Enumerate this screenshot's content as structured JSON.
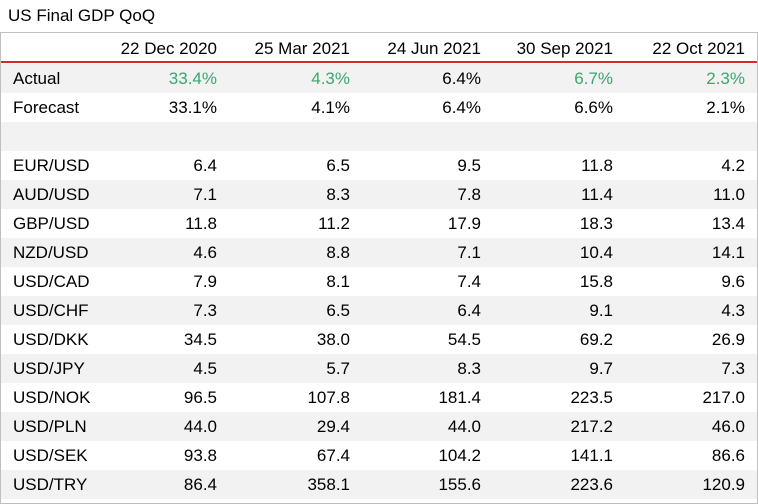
{
  "title": "US Final GDP QoQ",
  "columns": [
    "22 Dec 2020",
    "25 Mar 2021",
    "24 Jun 2021",
    "30 Sep 2021",
    "22 Oct 2021"
  ],
  "accent_color": "#d9272e",
  "positive_color": "#3aa76d",
  "rows": [
    {
      "label": "Actual",
      "values": [
        "33.4%",
        "4.3%",
        "6.4%",
        "6.7%",
        "2.3%"
      ]
    },
    {
      "label": "Forecast",
      "values": [
        "33.1%",
        "4.1%",
        "6.4%",
        "6.6%",
        "2.1%"
      ]
    },
    {
      "label": "",
      "values": [
        "",
        "",
        "",
        "",
        ""
      ]
    },
    {
      "label": "EUR/USD",
      "values": [
        "6.4",
        "6.5",
        "9.5",
        "11.8",
        "4.2"
      ]
    },
    {
      "label": "AUD/USD",
      "values": [
        "7.1",
        "8.3",
        "7.8",
        "11.4",
        "11.0"
      ]
    },
    {
      "label": "GBP/USD",
      "values": [
        "11.8",
        "11.2",
        "17.9",
        "18.3",
        "13.4"
      ]
    },
    {
      "label": "NZD/USD",
      "values": [
        "4.6",
        "8.8",
        "7.1",
        "10.4",
        "14.1"
      ]
    },
    {
      "label": "USD/CAD",
      "values": [
        "7.9",
        "8.1",
        "7.4",
        "15.8",
        "9.6"
      ]
    },
    {
      "label": "USD/CHF",
      "values": [
        "7.3",
        "6.5",
        "6.4",
        "9.1",
        "4.3"
      ]
    },
    {
      "label": "USD/DKK",
      "values": [
        "34.5",
        "38.0",
        "54.5",
        "69.2",
        "26.9"
      ]
    },
    {
      "label": "USD/JPY",
      "values": [
        "4.5",
        "5.7",
        "8.3",
        "9.7",
        "7.3"
      ]
    },
    {
      "label": "USD/NOK",
      "values": [
        "96.5",
        "107.8",
        "181.4",
        "223.5",
        "217.0"
      ]
    },
    {
      "label": "USD/PLN",
      "values": [
        "44.0",
        "29.4",
        "44.0",
        "217.2",
        "46.0"
      ]
    },
    {
      "label": "USD/SEK",
      "values": [
        "93.8",
        "67.4",
        "104.2",
        "141.1",
        "86.6"
      ]
    },
    {
      "label": "USD/TRY",
      "values": [
        "86.4",
        "358.1",
        "155.6",
        "223.6",
        "120.9"
      ]
    }
  ]
}
